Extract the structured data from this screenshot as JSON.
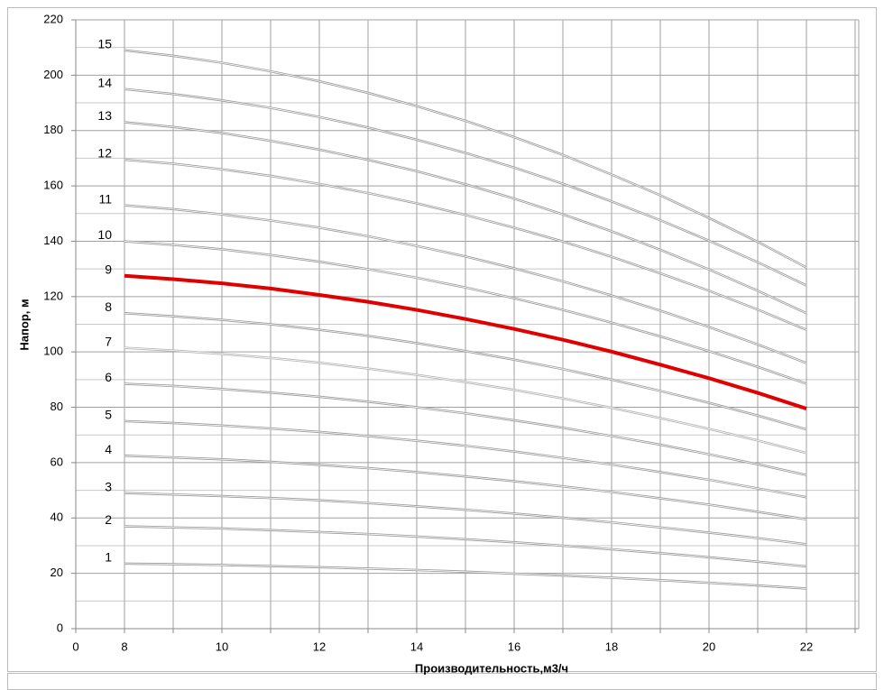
{
  "chart_data": {
    "type": "line",
    "x_label": "Производительность,м3/ч",
    "y_label": "Напор, м",
    "categories": [
      "0",
      "8",
      null,
      "10",
      null,
      "12",
      null,
      "14",
      null,
      "16",
      null,
      "18",
      null,
      "20",
      null,
      "22",
      null
    ],
    "ylim": [
      0,
      220
    ],
    "yticks": [
      0,
      20,
      40,
      60,
      80,
      100,
      120,
      140,
      160,
      180,
      200,
      220
    ],
    "y_minor_grid": [
      10,
      30,
      50,
      70,
      90,
      110,
      130,
      150,
      170,
      190,
      210
    ],
    "grid": true,
    "series": [
      {
        "name": "1",
        "color": "#9a9a9a",
        "values": [
          null,
          23.5,
          23.3,
          23.0,
          22.6,
          22.2,
          21.7,
          21.2,
          20.6,
          19.9,
          19.2,
          18.4,
          17.5,
          16.6,
          15.6,
          14.5,
          null
        ]
      },
      {
        "name": "2",
        "color": "#9a9a9a",
        "values": [
          null,
          37,
          36.6,
          36.2,
          35.6,
          34.9,
          34.2,
          33.3,
          32.3,
          31.2,
          30,
          28.7,
          27.3,
          25.8,
          24.2,
          22.5,
          null
        ]
      },
      {
        "name": "3",
        "color": "#9a9a9a",
        "values": [
          null,
          49,
          48.5,
          47.9,
          47.2,
          46.4,
          45.4,
          44.2,
          43,
          41.6,
          40.1,
          38.4,
          36.6,
          34.7,
          32.7,
          30.5,
          null
        ]
      },
      {
        "name": "4",
        "color": "#9a9a9a",
        "values": [
          null,
          62.5,
          61.9,
          61.2,
          60.3,
          59.2,
          58,
          56.6,
          55,
          53.3,
          51.4,
          49.4,
          47.1,
          44.8,
          42.2,
          39.5,
          null
        ]
      },
      {
        "name": "5",
        "color": "#9a9a9a",
        "values": [
          null,
          75,
          74.3,
          73.4,
          72.3,
          71.1,
          69.6,
          67.9,
          66.1,
          64,
          61.7,
          59.3,
          56.6,
          53.8,
          50.7,
          47.5,
          null
        ]
      },
      {
        "name": "6",
        "color": "#9a9a9a",
        "values": [
          null,
          88.5,
          87.7,
          86.6,
          85.3,
          83.8,
          82,
          80,
          77.8,
          75.3,
          72.6,
          69.6,
          66.5,
          63,
          59.4,
          55.5,
          null
        ]
      },
      {
        "name": "7",
        "color": "#b4b4b4",
        "values": [
          null,
          101.5,
          100.5,
          99.3,
          97.8,
          96.1,
          94,
          91.7,
          89.1,
          86.3,
          83.2,
          79.8,
          76.1,
          72.2,
          68,
          63.5,
          null
        ]
      },
      {
        "name": "8",
        "color": "#9a9a9a",
        "values": [
          null,
          114,
          112.9,
          111.6,
          110,
          108,
          105.8,
          103.2,
          100.3,
          97.2,
          93.8,
          90,
          85.9,
          81.6,
          77,
          72,
          null
        ]
      },
      {
        "name": "9",
        "color": "#e00000",
        "values": [
          null,
          127.5,
          126.3,
          124.8,
          122.9,
          120.6,
          118.1,
          115.2,
          111.9,
          108.3,
          104.4,
          100.1,
          95.4,
          90.5,
          85.2,
          79.5,
          null
        ]
      },
      {
        "name": "10",
        "color": "#9a9a9a",
        "values": [
          null,
          140,
          138.7,
          137.1,
          135,
          132.6,
          129.9,
          126.8,
          123.3,
          119.4,
          115.2,
          110.6,
          105.6,
          100.3,
          94.6,
          88.5,
          null
        ]
      },
      {
        "name": "11",
        "color": "#9a9a9a",
        "values": [
          null,
          153,
          151.6,
          149.7,
          147.5,
          144.9,
          141.8,
          138.3,
          134.5,
          130.2,
          125.5,
          120.4,
          114.9,
          109,
          102.7,
          96,
          null
        ]
      },
      {
        "name": "12",
        "color": "#9a9a9a",
        "values": [
          null,
          169.5,
          168,
          166,
          163.6,
          160.7,
          157.4,
          153.7,
          149.5,
          144.9,
          139.9,
          134.4,
          128.4,
          122.1,
          115.3,
          108,
          null
        ]
      },
      {
        "name": "13",
        "color": "#9a9a9a",
        "values": [
          null,
          183,
          181.3,
          179.1,
          176.3,
          173.1,
          169.4,
          165.3,
          160.6,
          155.4,
          149.7,
          143.6,
          136.9,
          129.8,
          122.1,
          114,
          null
        ]
      },
      {
        "name": "14",
        "color": "#9a9a9a",
        "values": [
          null,
          195,
          193.2,
          190.9,
          188.2,
          184.9,
          181.1,
          176.7,
          171.9,
          166.6,
          160.8,
          154.4,
          147.6,
          140.2,
          132.4,
          124,
          null
        ]
      },
      {
        "name": "15",
        "color": "#9a9a9a",
        "values": [
          null,
          209,
          207,
          204.5,
          201.4,
          197.8,
          193.6,
          188.8,
          183.5,
          177.6,
          171.2,
          164.1,
          156.6,
          148.4,
          139.8,
          130.5,
          null
        ]
      }
    ]
  }
}
